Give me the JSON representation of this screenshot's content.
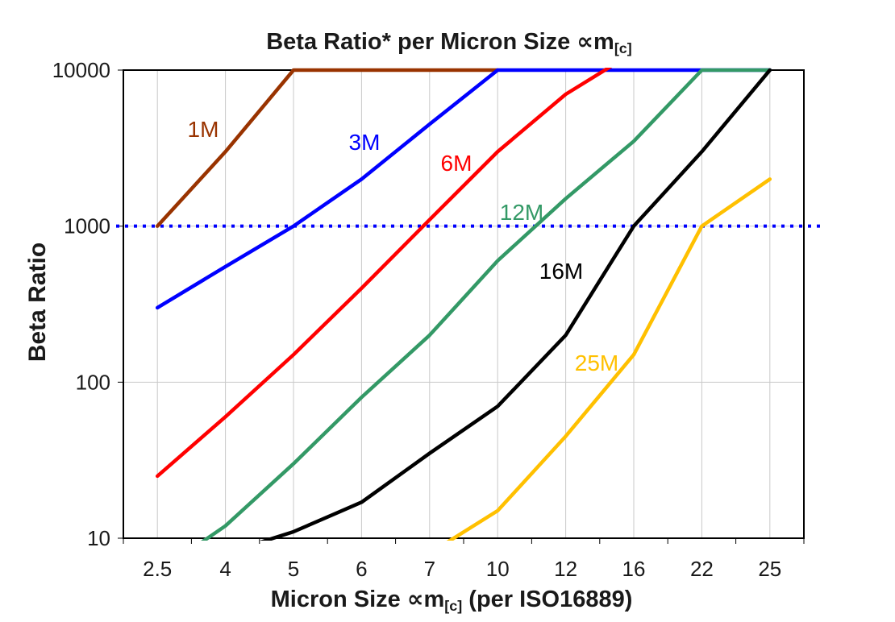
{
  "chart_data": {
    "type": "line",
    "title_parts": {
      "prefix": "Beta Ratio* per Micron Size ",
      "symbol": "∝m",
      "subscript": "[c]"
    },
    "xlabel_parts": {
      "prefix": "Micron Size ",
      "symbol": "∝m",
      "subscript": "[c]",
      "suffix": " (per ISO16889)"
    },
    "ylabel": "Beta Ratio",
    "categories": [
      "2.5",
      "4",
      "5",
      "6",
      "7",
      "10",
      "12",
      "16",
      "22",
      "25"
    ],
    "y_axis": {
      "scale": "log",
      "min": 10,
      "max": 10000,
      "ticks": [
        "10",
        "100",
        "1000",
        "10000"
      ]
    },
    "grid": {
      "vertical": "every-category",
      "horizontal_at": [
        100,
        1000
      ],
      "color": "#C9C9C9"
    },
    "reference_line": {
      "value": 1000,
      "style": "dotted",
      "color": "#0000FF"
    },
    "axis_color": "#000000",
    "series": [
      {
        "name": "1M",
        "color": "#993300",
        "values": [
          1000,
          3000,
          10000,
          10000,
          10000,
          10000,
          null,
          null,
          null,
          null
        ],
        "label_xy": [
          252,
          170
        ]
      },
      {
        "name": "3M",
        "color": "#0000FF",
        "values": [
          300,
          550,
          1000,
          2000,
          4500,
          10000,
          10000,
          10000,
          10000,
          10000
        ],
        "label_xy": [
          452,
          186
        ]
      },
      {
        "name": "6M",
        "color": "#FF0000",
        "values": [
          25,
          60,
          150,
          400,
          1100,
          3000,
          7000,
          13000,
          null,
          null
        ],
        "label_xy": [
          566,
          212
        ]
      },
      {
        "name": "12M",
        "color": "#339966",
        "values": [
          6,
          12,
          30,
          80,
          200,
          600,
          1500,
          3500,
          10000,
          10000
        ],
        "label_xy": [
          647,
          273
        ]
      },
      {
        "name": "16M",
        "color": "#000000",
        "values": [
          null,
          8,
          11,
          17,
          35,
          70,
          200,
          1000,
          3000,
          10000
        ],
        "label_xy": [
          696,
          346
        ]
      },
      {
        "name": "25M",
        "color": "#FFC000",
        "values": [
          null,
          null,
          null,
          null,
          8,
          15,
          45,
          150,
          1000,
          2000
        ],
        "label_xy": [
          740,
          460
        ]
      }
    ]
  }
}
